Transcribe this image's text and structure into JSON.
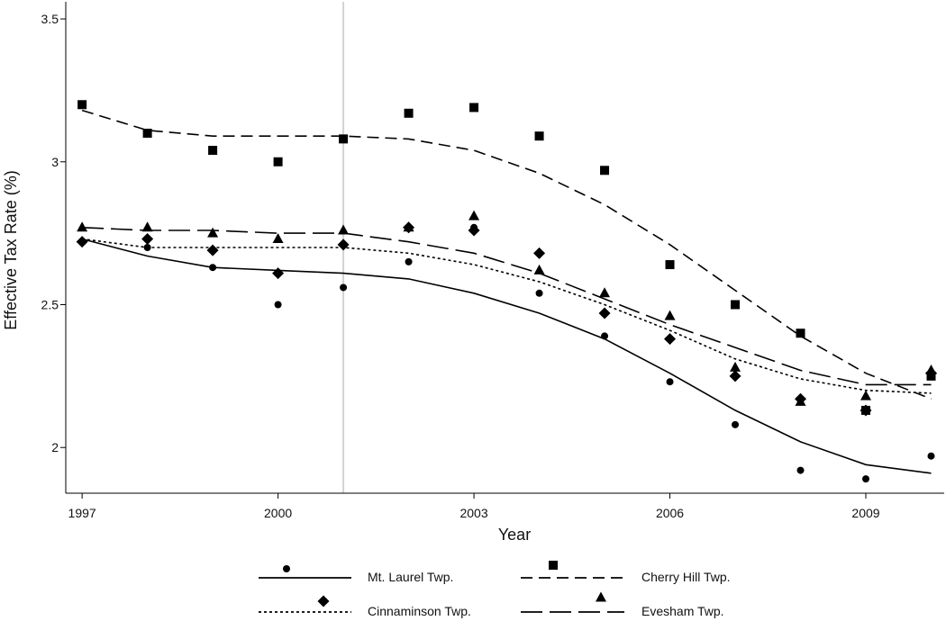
{
  "chart_data": {
    "type": "scatter",
    "title": "",
    "xlabel": "Year",
    "ylabel": "Effective Tax Rate (%)",
    "xlim": [
      1996.75,
      2010.2
    ],
    "ylim": [
      1.84,
      3.56
    ],
    "x_ticks": [
      1997,
      2000,
      2003,
      2006,
      2009
    ],
    "y_ticks": [
      2,
      2.5,
      3,
      3.5
    ],
    "y_tick_labels": [
      "2",
      "2.5",
      "3",
      "3.5"
    ],
    "reference_line_x": 2001,
    "grid": false,
    "legend_position": "bottom",
    "years": [
      1997,
      1998,
      1999,
      2000,
      2001,
      2002,
      2003,
      2004,
      2005,
      2006,
      2007,
      2008,
      2009,
      2010
    ],
    "series": [
      {
        "name": "Mt. Laurel Twp.",
        "marker": "circle",
        "line_dash": "solid",
        "points": [
          2.72,
          2.7,
          2.63,
          2.5,
          2.56,
          2.65,
          2.77,
          2.54,
          2.39,
          2.23,
          2.08,
          1.92,
          1.89,
          1.97
        ],
        "fit": [
          2.73,
          2.67,
          2.63,
          2.62,
          2.61,
          2.59,
          2.54,
          2.47,
          2.38,
          2.26,
          2.13,
          2.02,
          1.94,
          1.91
        ]
      },
      {
        "name": "Cherry Hill Twp.",
        "marker": "square",
        "line_dash": "medium-dash",
        "points": [
          3.2,
          3.1,
          3.04,
          3.0,
          3.08,
          3.17,
          3.19,
          3.09,
          2.97,
          2.64,
          2.5,
          2.4,
          2.13,
          2.25
        ],
        "fit": [
          3.18,
          3.11,
          3.09,
          3.09,
          3.09,
          3.08,
          3.04,
          2.96,
          2.85,
          2.71,
          2.55,
          2.39,
          2.26,
          2.17
        ]
      },
      {
        "name": "Cinnaminson Twp.",
        "marker": "diamond",
        "line_dash": "dotted",
        "points": [
          2.72,
          2.73,
          2.69,
          2.61,
          2.71,
          2.77,
          2.76,
          2.68,
          2.47,
          2.38,
          2.25,
          2.17,
          2.13,
          2.26
        ],
        "fit": [
          2.73,
          2.7,
          2.7,
          2.7,
          2.7,
          2.68,
          2.64,
          2.58,
          2.5,
          2.41,
          2.31,
          2.24,
          2.2,
          2.19
        ]
      },
      {
        "name": "Evesham Twp.",
        "marker": "triangle",
        "line_dash": "long-dash",
        "points": [
          2.77,
          2.77,
          2.75,
          2.73,
          2.76,
          2.77,
          2.81,
          2.62,
          2.54,
          2.46,
          2.28,
          2.16,
          2.18,
          2.27
        ],
        "fit": [
          2.77,
          2.76,
          2.76,
          2.75,
          2.75,
          2.72,
          2.68,
          2.61,
          2.52,
          2.43,
          2.35,
          2.27,
          2.22,
          2.22
        ]
      }
    ]
  },
  "colors": {
    "ink": "#000000",
    "reference_line": "#d3d3d3",
    "background": "#ffffff"
  }
}
